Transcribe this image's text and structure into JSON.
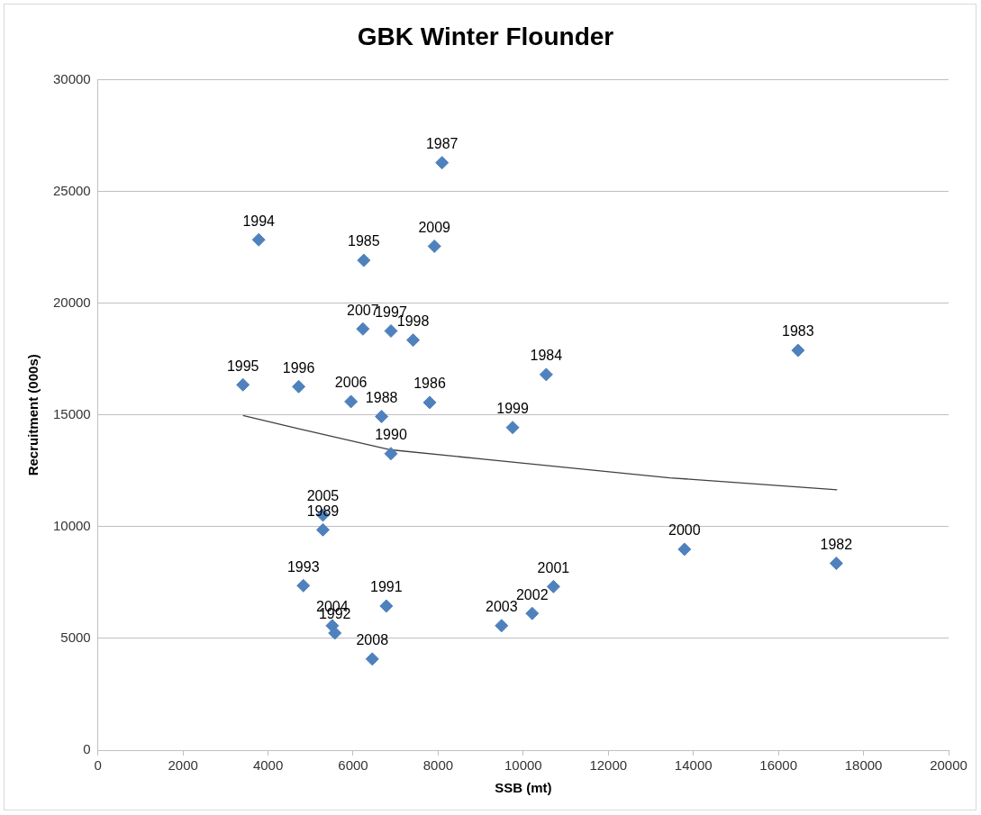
{
  "chart_data": {
    "type": "scatter",
    "title": "GBK Winter Flounder",
    "xlabel": "SSB (mt)",
    "ylabel": "Recruitment (000s)",
    "xlim": [
      0,
      20000
    ],
    "xticks": [
      0,
      2000,
      4000,
      6000,
      8000,
      10000,
      12000,
      14000,
      16000,
      18000,
      20000
    ],
    "ylim": [
      0,
      30000
    ],
    "yticks": [
      0,
      5000,
      10000,
      15000,
      20000,
      25000,
      30000
    ],
    "grid": "y",
    "legend": false,
    "marker": "diamond",
    "series": [
      {
        "color": "#4f81bd",
        "x": [
          17360,
          16460,
          10540,
          6250,
          7800,
          8090,
          6670,
          5290,
          6890,
          6780,
          5570,
          4830,
          3780,
          3410,
          4720,
          6890,
          7410,
          9750,
          13790,
          10710,
          10210,
          9490,
          5510,
          5290,
          5950,
          6230,
          6450,
          7910
        ],
        "values": [
          8360,
          17890,
          16810,
          21920,
          15560,
          26290,
          14930,
          9860,
          13270,
          6450,
          5240,
          7360,
          22840,
          16350,
          16270,
          18760,
          18350,
          14440,
          8990,
          7320,
          6120,
          5570,
          5570,
          10520,
          15600,
          18850,
          4080,
          22550
        ]
      },
      {
        "type": "line",
        "color": "#404040",
        "marker": "none",
        "x": [
          3410,
          4700,
          6890,
          10170,
          13440,
          17380
        ],
        "values": [
          14980,
          14390,
          13440,
          12810,
          12190,
          11650
        ]
      }
    ],
    "annotations": [
      {
        "text": "1982",
        "x": 17360,
        "y": 8360
      },
      {
        "text": "1983",
        "x": 16460,
        "y": 17890
      },
      {
        "text": "1984",
        "x": 10540,
        "y": 16810
      },
      {
        "text": "1985",
        "x": 6250,
        "y": 21920
      },
      {
        "text": "1986",
        "x": 7800,
        "y": 15560
      },
      {
        "text": "1987",
        "x": 8090,
        "y": 26290
      },
      {
        "text": "1988",
        "x": 6670,
        "y": 14930
      },
      {
        "text": "1989",
        "x": 5290,
        "y": 9860
      },
      {
        "text": "1990",
        "x": 6890,
        "y": 13270
      },
      {
        "text": "1991",
        "x": 6780,
        "y": 6450
      },
      {
        "text": "1992",
        "x": 5570,
        "y": 5240
      },
      {
        "text": "1993",
        "x": 4830,
        "y": 7360
      },
      {
        "text": "1994",
        "x": 3780,
        "y": 22840
      },
      {
        "text": "1995",
        "x": 3410,
        "y": 16350
      },
      {
        "text": "1996",
        "x": 4720,
        "y": 16270
      },
      {
        "text": "1997",
        "x": 6890,
        "y": 18760
      },
      {
        "text": "1998",
        "x": 7410,
        "y": 18350
      },
      {
        "text": "1999",
        "x": 9750,
        "y": 14440
      },
      {
        "text": "2000",
        "x": 13790,
        "y": 8990
      },
      {
        "text": "2001",
        "x": 10710,
        "y": 7320
      },
      {
        "text": "2002",
        "x": 10210,
        "y": 6120
      },
      {
        "text": "2003",
        "x": 9490,
        "y": 5570
      },
      {
        "text": "2004",
        "x": 5510,
        "y": 5570
      },
      {
        "text": "2005",
        "x": 5290,
        "y": 10520
      },
      {
        "text": "2006",
        "x": 5950,
        "y": 15600
      },
      {
        "text": "2007",
        "x": 6230,
        "y": 18850
      },
      {
        "text": "2008",
        "x": 6450,
        "y": 4080
      },
      {
        "text": "2009",
        "x": 7910,
        "y": 22550
      }
    ]
  }
}
